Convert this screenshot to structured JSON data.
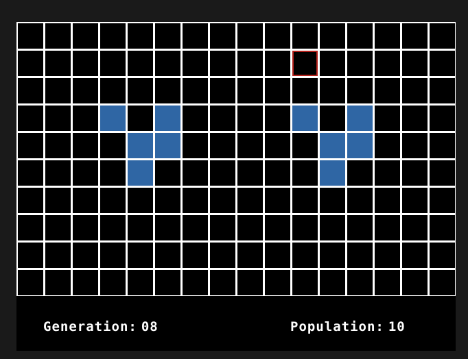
{
  "grid": {
    "columns": 16,
    "rows": 10,
    "alive_cells": [
      [
        3,
        3
      ],
      [
        3,
        5
      ],
      [
        4,
        4
      ],
      [
        4,
        5
      ],
      [
        5,
        4
      ],
      [
        3,
        10
      ],
      [
        3,
        12
      ],
      [
        4,
        11
      ],
      [
        4,
        12
      ],
      [
        5,
        11
      ]
    ],
    "cursor_cell": [
      1,
      10
    ],
    "colors": {
      "alive": "#2f66a4",
      "dead": "#000000",
      "grid_lines": "#ffffff",
      "cursor": "#b3201a"
    }
  },
  "status": {
    "generation_label": "Generation:",
    "generation_value": "08",
    "population_label": "Population:",
    "population_value": "10"
  }
}
